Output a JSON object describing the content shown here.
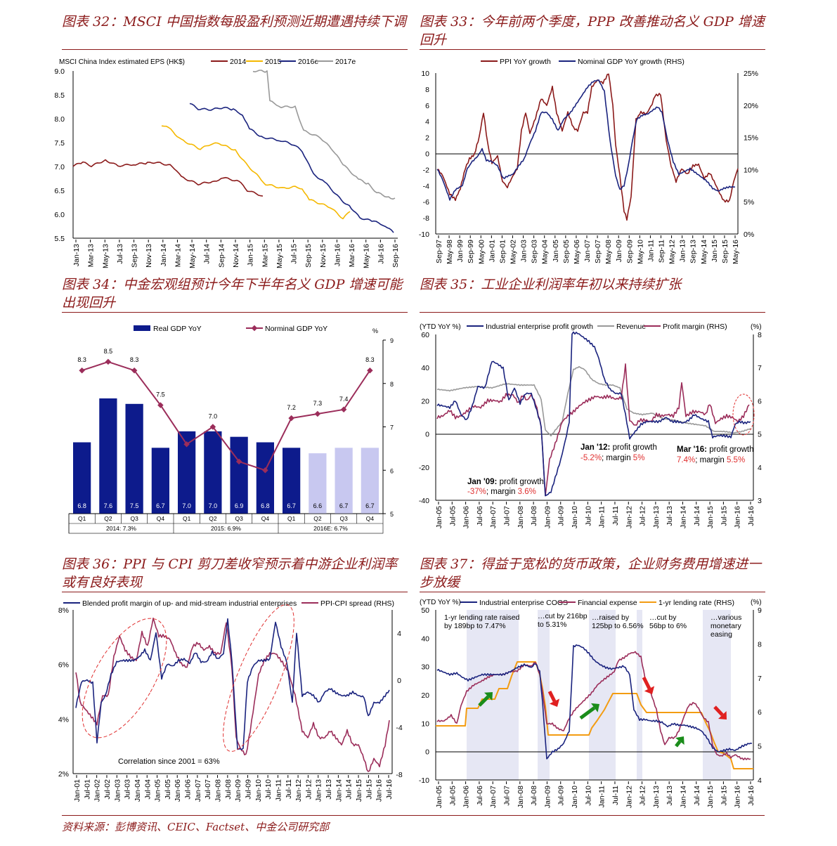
{
  "charts": {
    "c32": {
      "title": "图表 32：MSCI 中国指数每股盈利预测近期遭遇持续下调",
      "ylabel": "MSCI China Index estimated EPS (HK$)",
      "yticks": [
        "9.0",
        "8.5",
        "8.0",
        "7.5",
        "7.0",
        "6.5",
        "6.0",
        "5.5"
      ],
      "xticks": [
        "Jan-13",
        "Mar-13",
        "May-13",
        "Jul-13",
        "Sep-13",
        "Nov-13",
        "Jan-14",
        "Mar-14",
        "May-14",
        "Jul-14",
        "Sep-14",
        "Nov-14",
        "Jan-15",
        "Mar-15",
        "May-15",
        "Jul-15",
        "Sep-15",
        "Nov-15",
        "Jan-16",
        "Mar-16",
        "May-16",
        "Jul-16",
        "Sep-16"
      ],
      "series": [
        {
          "name": "2014",
          "color": "#8b1a1a"
        },
        {
          "name": "2015",
          "color": "#f5b800"
        },
        {
          "name": "2016e",
          "color": "#1a237e"
        },
        {
          "name": "2017e",
          "color": "#999999"
        }
      ]
    },
    "c33": {
      "title": "图表 33：今年前两个季度，PPP 改善推动名义 GDP 增速回升",
      "yticks_left": [
        "10",
        "8",
        "6",
        "4",
        "2",
        "0",
        "-2",
        "-4",
        "-6",
        "-8",
        "-10"
      ],
      "yticks_right": [
        "25%",
        "20%",
        "15%",
        "10%",
        "5%",
        "0%"
      ],
      "xticks": [
        "Sep-97",
        "May-98",
        "Jan-99",
        "Sep-99",
        "May-00",
        "Jan-01",
        "Sep-01",
        "May-02",
        "Jan-03",
        "Sep-03",
        "May-04",
        "Jan-05",
        "Sep-05",
        "May-06",
        "Jan-07",
        "Sep-07",
        "May-08",
        "Jan-09",
        "Sep-09",
        "May-10",
        "Jan-11",
        "Sep-11",
        "May-12",
        "Jan-13",
        "Sep-13",
        "May-14",
        "Jan-15",
        "Sep-15",
        "May-16"
      ],
      "series": [
        {
          "name": "PPI YoY growth",
          "color": "#8b1a1a"
        },
        {
          "name": "Nominal GDP YoY growth (RHS)",
          "color": "#1a237e"
        }
      ]
    },
    "c34": {
      "title": "图表 34：中金宏观组预计今年下半年名义 GDP 增速可能出现回升",
      "legend": [
        "Real GDP YoY",
        "Norminal GDP YoY"
      ],
      "unit": "%",
      "yticks_right": [
        "9",
        "8",
        "7",
        "6",
        "5"
      ],
      "quarters": [
        "Q1",
        "Q2",
        "Q3",
        "Q4",
        "Q1",
        "Q2",
        "Q3",
        "Q4",
        "Q1",
        "Q2",
        "Q3",
        "Q4"
      ],
      "groups": [
        "2014: 7.3%",
        "2015: 6.9%",
        "2016E: 6.7%"
      ],
      "real": [
        6.8,
        7.6,
        7.5,
        6.7,
        7.0,
        7.0,
        6.9,
        6.8,
        6.7,
        6.6,
        6.7,
        6.7
      ],
      "real_labels": [
        "6.8",
        "7.6",
        "7.5",
        "6.7",
        "7.0",
        "7.0",
        "6.9",
        "6.8",
        "6.7",
        "6.6",
        "6.7",
        "6.7"
      ],
      "nominal": [
        8.3,
        8.5,
        8.3,
        7.5,
        6.6,
        7.0,
        6.2,
        6.0,
        7.2,
        7.3,
        7.4,
        8.3
      ],
      "nominal_labels": [
        "8.3",
        "8.5",
        "8.3",
        "7.5",
        "",
        "7.0",
        "",
        "",
        "7.2",
        "7.3",
        "7.4",
        "8.3"
      ],
      "bar_color": "#0d1b8c",
      "forecast_color": "#c8c8f0",
      "line_color": "#9b2d5a"
    },
    "c35": {
      "title": "图表 35：工业企业利润率年初以来持续扩张",
      "ylabel_left": "(YTD YoY %)",
      "ylabel_right": "(%)",
      "yticks_left": [
        "60",
        "40",
        "20",
        "0",
        "-20",
        "-40"
      ],
      "yticks_right": [
        "8",
        "7",
        "6",
        "5",
        "4",
        "3"
      ],
      "xticks": [
        "Jan-05",
        "Jul-05",
        "Jan-06",
        "Jul-06",
        "Jan-07",
        "Jul-07",
        "Jan-08",
        "Jul-08",
        "Jan-09",
        "Jul-09",
        "Jan-10",
        "Jul-10",
        "Jan-11",
        "Jul-11",
        "Jan-12",
        "Jul-12",
        "Jan-13",
        "Jul-13",
        "Jan-14",
        "Jul-14",
        "Jan-15",
        "Jul-15",
        "Jan-16",
        "Jul-16"
      ],
      "series": [
        {
          "name": "Industrial enterprise profit growth",
          "color": "#1a237e"
        },
        {
          "name": "Revenue",
          "color": "#999999"
        },
        {
          "name": "Profit margin (RHS)",
          "color": "#9b2d5a"
        }
      ],
      "ann1_head": "Jan '09:",
      "ann1_rest": " profit growth",
      "ann1_v": "-37%",
      "ann1_m": "; margin ",
      "ann1_mv": "3.6%",
      "ann2_head": "Jan '12:",
      "ann2_rest": " profit growth",
      "ann2_v": "-5.2%",
      "ann2_m": "; margin ",
      "ann2_mv": "5%",
      "ann3_head": "Mar '16:",
      "ann3_rest": " profit growth",
      "ann3_v": "7.4%",
      "ann3_m": "; margin ",
      "ann3_mv": "5.5%"
    },
    "c36": {
      "title": "图表 36：PPI 与 CPI 剪刀差收窄预示着中游企业利润率或有良好表现",
      "yticks_left": [
        "8%",
        "6%",
        "4%",
        "2%"
      ],
      "yticks_right": [
        "4",
        "0",
        "-4",
        "-8"
      ],
      "xticks": [
        "Jan-01",
        "Jul-01",
        "Jan-02",
        "Jul-02",
        "Jan-03",
        "Jul-03",
        "Jan-04",
        "Jul-04",
        "Jan-05",
        "Jul-05",
        "Jan-06",
        "Jul-06",
        "Jan-07",
        "Jul-07",
        "Jan-08",
        "Jul-08",
        "Jan-09",
        "Jul-09",
        "Jan-10",
        "Jul-10",
        "Jan-11",
        "Jul-11",
        "Jan-12",
        "Jul-12",
        "Jan-13",
        "Jul-13",
        "Jan-14",
        "Jul-14",
        "Jan-15",
        "Jul-15",
        "Jan-16",
        "Jul-16"
      ],
      "series": [
        {
          "name": "Blended profit margin of up- and mid-stream industrial enterprises",
          "color": "#1a237e"
        },
        {
          "name": "PPI-CPI spread (RHS)",
          "color": "#9b2d5a"
        }
      ],
      "note": "Correlation since 2001 = 63%"
    },
    "c37": {
      "title": "图表 37：得益于宽松的货币政策，企业财务费用增速进一步放缓",
      "ylabel_left": "(YTD YoY %)",
      "ylabel_right": "(%)",
      "yticks_left": [
        "50",
        "40",
        "30",
        "20",
        "10",
        "0",
        "-10"
      ],
      "yticks_right": [
        "9",
        "8",
        "7",
        "6",
        "5",
        "4"
      ],
      "xticks": [
        "Jan-05",
        "Jul-05",
        "Jan-06",
        "Jul-06",
        "Jan-07",
        "Jul-07",
        "Jan-08",
        "Jul-08",
        "Jan-09",
        "Jul-09",
        "Jan-10",
        "Jul-10",
        "Jan-11",
        "Jul-11",
        "Jan-12",
        "Jul-12",
        "Jan-13",
        "Jul-13",
        "Jan-14",
        "Jul-14",
        "Jan-15",
        "Jul-15",
        "Jan-16",
        "Jul-16"
      ],
      "series": [
        {
          "name": "Industrial enterprise COGS",
          "color": "#1a237e"
        },
        {
          "name": "Financial expense",
          "color": "#9b2d5a"
        },
        {
          "name": "1-yr lending rate (RHS)",
          "color": "#f39c12"
        }
      ],
      "notes": [
        [
          "1-yr lending rate raised",
          "by 189bp to 7.47%"
        ],
        [
          "…cut by 216bp",
          "to 5.31%"
        ],
        [
          "…raised by",
          "125bp to 6.56%"
        ],
        [
          "…cut by",
          "56bp to 6%"
        ],
        [
          "…various",
          "monetary",
          "easing"
        ]
      ]
    }
  },
  "source": "资料来源：彭博资讯、CEIC、Factset、中金公司研究部"
}
